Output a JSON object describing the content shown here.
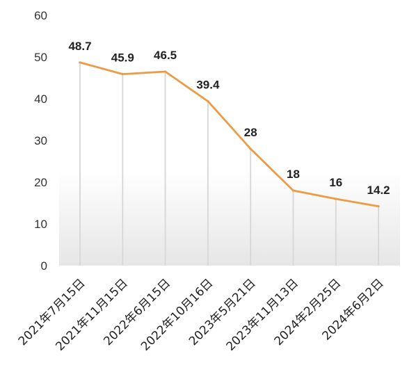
{
  "chart_data": {
    "type": "line",
    "title": "",
    "xlabel": "",
    "ylabel": "",
    "categories": [
      "2021年7月15日",
      "2021年11月15日",
      "2022年6月15日",
      "2022年10月16日",
      "2023年5月21日",
      "2023年11月13日",
      "2024年2月25日",
      "2024年6月2日"
    ],
    "series": [
      {
        "values": [
          48.7,
          45.9,
          46.5,
          39.4,
          28,
          18,
          16,
          14.2
        ]
      }
    ],
    "data_labels": [
      "48.7",
      "45.9",
      "46.5",
      "39.4",
      "28",
      "18",
      "16",
      "14.2"
    ],
    "y_ticks": [
      "0",
      "10",
      "20",
      "30",
      "40",
      "50",
      "60"
    ],
    "ylim": [
      0,
      60
    ],
    "grid": false,
    "drop_lines": true,
    "legend": "none",
    "colors": {
      "line": "#ED9A45",
      "drop_line": "#D9D9D9",
      "plot_top": "#FFFFFF",
      "plot_bottom": "#E6E6E6"
    }
  }
}
